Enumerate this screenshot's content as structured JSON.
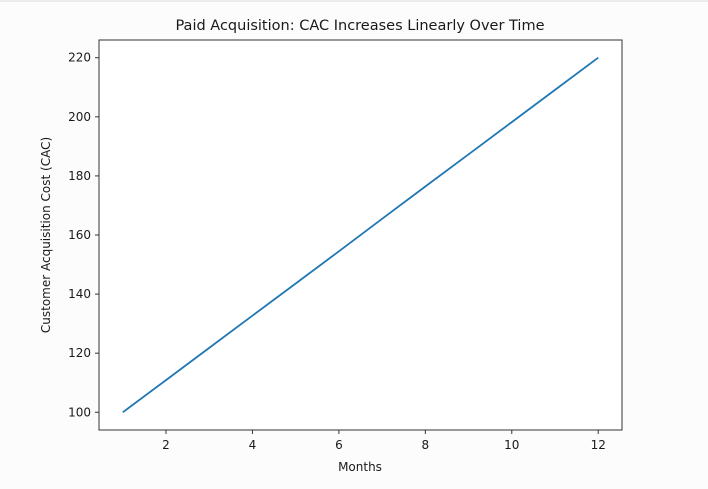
{
  "chart_data": {
    "type": "line",
    "title": "Paid Acquisition: CAC Increases Linearly Over Time",
    "xlabel": "Months",
    "ylabel": "Customer Acquisition Cost (CAC)",
    "x": [
      1,
      2,
      3,
      4,
      5,
      6,
      7,
      8,
      9,
      10,
      11,
      12
    ],
    "series": [
      {
        "name": "CAC",
        "color": "#1f77b4",
        "values": [
          100,
          110.9,
          121.8,
          132.7,
          143.6,
          154.5,
          165.5,
          176.4,
          187.3,
          198.2,
          209.1,
          220
        ]
      }
    ],
    "xticks": [
      2,
      4,
      6,
      8,
      10,
      12
    ],
    "yticks": [
      100,
      120,
      140,
      160,
      180,
      200,
      220
    ],
    "xlim": [
      0.45,
      12.55
    ],
    "ylim": [
      94,
      226
    ],
    "grid": false,
    "legend": null
  }
}
